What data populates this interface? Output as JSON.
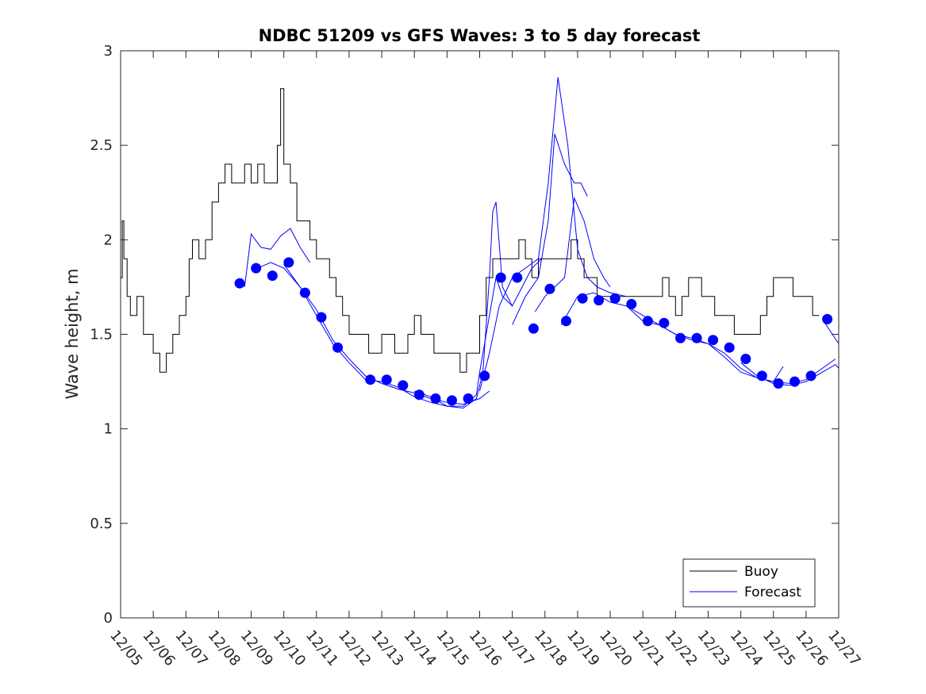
{
  "chart_data": {
    "type": "line",
    "title": "NDBC 51209 vs GFS Waves: 3 to 5 day forecast",
    "xlabel": "",
    "ylabel": "Wave height, m",
    "xlim": [
      0,
      22
    ],
    "ylim": [
      0,
      3
    ],
    "x_tick_values": [
      0,
      1,
      2,
      3,
      4,
      5,
      6,
      7,
      8,
      9,
      10,
      11,
      12,
      13,
      14,
      15,
      16,
      17,
      18,
      19,
      20,
      21,
      22
    ],
    "x_tick_labels": [
      "12/05",
      "12/06",
      "12/07",
      "12/08",
      "12/09",
      "12/10",
      "12/11",
      "12/12",
      "12/13",
      "12/14",
      "12/15",
      "12/16",
      "12/17",
      "12/18",
      "12/19",
      "12/20",
      "12/21",
      "12/22",
      "12/23",
      "12/24",
      "12/25",
      "12/26",
      "12/27"
    ],
    "y_tick_values": [
      0,
      0.5,
      1,
      1.5,
      2,
      2.5,
      3
    ],
    "y_tick_labels": [
      "0",
      "0.5",
      "1",
      "1.5",
      "2",
      "2.5",
      "3"
    ],
    "grid": false,
    "legend": {
      "position": "bottom-right",
      "entries": [
        {
          "label": "Buoy",
          "color": "#000000"
        },
        {
          "label": "Forecast",
          "color": "#0000ff"
        }
      ]
    },
    "buoy": {
      "name": "Buoy",
      "color": "#000000",
      "x": [
        0,
        0.05,
        0.1,
        0.2,
        0.3,
        0.5,
        0.7,
        0.8,
        1.0,
        1.2,
        1.4,
        1.6,
        1.8,
        2.0,
        2.1,
        2.2,
        2.4,
        2.6,
        2.8,
        3.0,
        3.2,
        3.4,
        3.6,
        3.8,
        4.0,
        4.2,
        4.4,
        4.6,
        4.8,
        4.9,
        5.0,
        5.2,
        5.4,
        5.6,
        5.8,
        6.0,
        6.2,
        6.4,
        6.6,
        6.8,
        7.0,
        7.2,
        7.4,
        7.6,
        7.8,
        8.0,
        8.2,
        8.4,
        8.6,
        8.8,
        9.0,
        9.2,
        9.4,
        9.6,
        9.8,
        10.0,
        10.2,
        10.4,
        10.6,
        10.8,
        11.0,
        11.2,
        11.4,
        11.6,
        11.8,
        12.0,
        12.2,
        12.4,
        12.6,
        12.8,
        13.0,
        13.2,
        13.4,
        13.6,
        13.8,
        14.0,
        14.2,
        14.4,
        14.6,
        14.8,
        15.0,
        15.2,
        15.4,
        15.6,
        15.8,
        16.0,
        16.2,
        16.4,
        16.6,
        16.8,
        17.0,
        17.2,
        17.4,
        17.6,
        17.8,
        18.0,
        18.2,
        18.4,
        18.6,
        18.8,
        19.0,
        19.2,
        19.4,
        19.6,
        19.8,
        20.0,
        20.2,
        20.4,
        20.6,
        20.8,
        21.0,
        21.2,
        21.4
      ],
      "values": [
        1.8,
        2.1,
        1.9,
        1.7,
        1.6,
        1.7,
        1.5,
        1.5,
        1.4,
        1.3,
        1.4,
        1.5,
        1.6,
        1.7,
        1.9,
        2.0,
        1.9,
        2.0,
        2.2,
        2.3,
        2.4,
        2.3,
        2.3,
        2.4,
        2.3,
        2.4,
        2.3,
        2.3,
        2.5,
        2.8,
        2.4,
        2.3,
        2.1,
        2.1,
        2.0,
        1.9,
        1.9,
        1.8,
        1.7,
        1.6,
        1.5,
        1.5,
        1.5,
        1.4,
        1.4,
        1.5,
        1.5,
        1.4,
        1.4,
        1.5,
        1.6,
        1.5,
        1.5,
        1.4,
        1.4,
        1.4,
        1.4,
        1.3,
        1.4,
        1.4,
        1.6,
        1.8,
        1.9,
        1.9,
        1.9,
        1.9,
        2.0,
        1.9,
        1.8,
        1.9,
        1.9,
        1.9,
        1.9,
        1.9,
        2.0,
        1.9,
        1.8,
        1.8,
        1.7,
        1.7,
        1.7,
        1.7,
        1.7,
        1.7,
        1.7,
        1.7,
        1.7,
        1.7,
        1.8,
        1.7,
        1.6,
        1.7,
        1.8,
        1.8,
        1.7,
        1.7,
        1.6,
        1.6,
        1.6,
        1.5,
        1.5,
        1.5,
        1.5,
        1.6,
        1.7,
        1.8,
        1.8,
        1.8,
        1.7,
        1.7,
        1.7,
        1.6,
        1.6
      ]
    },
    "forecast_runs": [
      {
        "name": "Forecast",
        "color": "#0000ff",
        "x": [
          3.8,
          4.0,
          4.3,
          4.6,
          4.9,
          5.2,
          5.5,
          5.8
        ],
        "values": [
          1.75,
          2.03,
          1.96,
          1.95,
          2.02,
          2.06,
          1.96,
          1.88
        ]
      },
      {
        "name": "Forecast",
        "color": "#0000ff",
        "x": [
          4.2,
          4.6,
          5.0,
          5.5,
          6.0,
          6.5,
          7.0,
          7.5,
          8.0,
          8.5,
          9.0,
          9.5,
          10.0,
          10.5,
          11.0,
          11.3
        ],
        "values": [
          1.85,
          1.88,
          1.85,
          1.75,
          1.63,
          1.47,
          1.37,
          1.28,
          1.24,
          1.21,
          1.19,
          1.16,
          1.14,
          1.13,
          1.16,
          1.2
        ]
      },
      {
        "name": "Forecast",
        "color": "#0000ff",
        "x": [
          5.0,
          5.5,
          6.0,
          6.5,
          7.0,
          7.5,
          8.0,
          8.5,
          9.0,
          9.5,
          10.0,
          10.5,
          10.9,
          11.0,
          11.3,
          11.5,
          11.7,
          12.0
        ],
        "values": [
          1.87,
          1.75,
          1.6,
          1.45,
          1.35,
          1.26,
          1.25,
          1.22,
          1.17,
          1.14,
          1.12,
          1.12,
          1.18,
          1.3,
          1.6,
          1.8,
          1.7,
          1.65
        ]
      },
      {
        "name": "Forecast",
        "color": "#0000ff",
        "x": [
          9.0,
          9.5,
          10.0,
          10.5,
          10.9,
          11.1,
          11.3,
          11.4,
          11.5,
          11.7,
          12.0,
          12.3,
          12.6,
          12.9
        ],
        "values": [
          1.2,
          1.17,
          1.12,
          1.11,
          1.16,
          1.3,
          1.8,
          2.15,
          2.2,
          1.75,
          1.65,
          1.75,
          1.85,
          1.9
        ]
      },
      {
        "name": "Forecast",
        "color": "#0000ff",
        "x": [
          11.0,
          11.3,
          11.6,
          12.0,
          12.4,
          12.8,
          13.1,
          13.4,
          13.7,
          14.0,
          14.3,
          14.6,
          15.0,
          15.5
        ],
        "values": [
          1.2,
          1.4,
          1.65,
          1.8,
          1.85,
          1.9,
          2.3,
          2.86,
          2.5,
          1.95,
          1.8,
          1.75,
          1.72,
          1.7
        ]
      },
      {
        "name": "Forecast",
        "color": "#0000ff",
        "x": [
          12.0,
          12.4,
          12.8,
          13.1,
          13.3,
          13.6,
          13.9,
          14.1,
          14.3
        ],
        "values": [
          1.55,
          1.7,
          1.8,
          2.1,
          2.56,
          2.4,
          2.3,
          2.3,
          2.23
        ]
      },
      {
        "name": "Forecast",
        "color": "#0000ff",
        "x": [
          12.7,
          13.0,
          13.3,
          13.6,
          13.9,
          14.2,
          14.5,
          14.8,
          15.0
        ],
        "values": [
          1.62,
          1.7,
          1.75,
          1.8,
          2.22,
          2.1,
          1.9,
          1.8,
          1.75
        ]
      },
      {
        "name": "Forecast",
        "color": "#0000ff",
        "x": [
          13.5,
          14.0,
          14.5,
          15.0,
          15.5,
          16.0,
          16.5,
          17.0,
          17.5,
          18.0,
          18.5,
          19.0,
          19.5,
          20.0,
          20.3
        ],
        "values": [
          1.55,
          1.7,
          1.72,
          1.67,
          1.65,
          1.6,
          1.55,
          1.5,
          1.48,
          1.45,
          1.4,
          1.32,
          1.27,
          1.25,
          1.33
        ]
      },
      {
        "name": "Forecast",
        "color": "#0000ff",
        "x": [
          15.5,
          16.0,
          16.5,
          17.0,
          17.5,
          18.0,
          18.5,
          19.0,
          19.5,
          20.0,
          20.5,
          21.0,
          21.5,
          21.9
        ],
        "values": [
          1.65,
          1.57,
          1.55,
          1.5,
          1.47,
          1.45,
          1.38,
          1.3,
          1.27,
          1.25,
          1.24,
          1.26,
          1.32,
          1.37
        ]
      },
      {
        "name": "Forecast",
        "color": "#0000ff",
        "x": [
          19.0,
          19.5,
          20.0,
          20.5,
          21.0,
          21.5,
          21.9,
          22.0
        ],
        "values": [
          1.35,
          1.28,
          1.24,
          1.23,
          1.25,
          1.3,
          1.34,
          1.32
        ]
      },
      {
        "name": "Forecast",
        "color": "#0000ff",
        "x": [
          21.5,
          22.0
        ],
        "values": [
          1.58,
          1.45
        ]
      }
    ],
    "forecast_markers": {
      "name": "Forecast",
      "color": "#0000ff",
      "x": [
        3.65,
        4.15,
        4.65,
        5.15,
        5.65,
        6.15,
        6.65,
        7.65,
        8.15,
        8.65,
        9.15,
        9.65,
        10.15,
        10.65,
        11.15,
        11.65,
        12.15,
        12.65,
        13.15,
        13.65,
        14.15,
        14.65,
        15.15,
        15.65,
        16.15,
        16.65,
        17.15,
        17.65,
        18.15,
        18.65,
        19.15,
        19.65,
        20.15,
        20.65,
        21.15,
        21.65
      ],
      "values": [
        1.77,
        1.85,
        1.81,
        1.88,
        1.72,
        1.59,
        1.43,
        1.26,
        1.26,
        1.23,
        1.18,
        1.16,
        1.15,
        1.16,
        1.28,
        1.8,
        1.8,
        1.53,
        1.74,
        1.57,
        1.69,
        1.68,
        1.69,
        1.66,
        1.57,
        1.56,
        1.48,
        1.48,
        1.47,
        1.43,
        1.37,
        1.28,
        1.24,
        1.25,
        1.28,
        1.58
      ]
    }
  }
}
